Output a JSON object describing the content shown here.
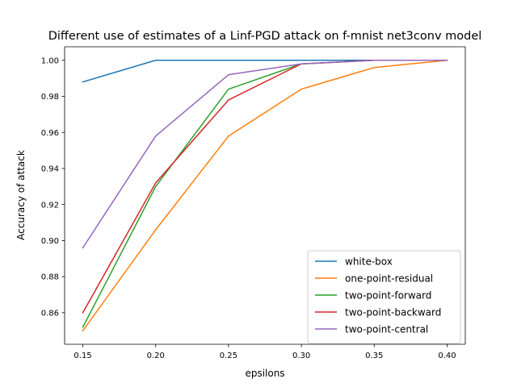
{
  "chart_data": {
    "type": "line",
    "title": "Different use of estimates of a Linf-PGD attack on f-mnist net3conv model",
    "xlabel": "epsilons",
    "ylabel": "Accuracy of attack",
    "x": [
      0.15,
      0.2,
      0.25,
      0.3,
      0.35,
      0.4
    ],
    "xlim": [
      0.1375,
      0.4125
    ],
    "ylim": [
      0.8425,
      1.0075
    ],
    "xticks": [
      {
        "value": 0.15,
        "label": "0.15"
      },
      {
        "value": 0.2,
        "label": "0.20"
      },
      {
        "value": 0.25,
        "label": "0.25"
      },
      {
        "value": 0.3,
        "label": "0.30"
      },
      {
        "value": 0.35,
        "label": "0.35"
      },
      {
        "value": 0.4,
        "label": "0.40"
      }
    ],
    "yticks": [
      {
        "value": 0.86,
        "label": "0.86"
      },
      {
        "value": 0.88,
        "label": "0.88"
      },
      {
        "value": 0.9,
        "label": "0.90"
      },
      {
        "value": 0.92,
        "label": "0.92"
      },
      {
        "value": 0.94,
        "label": "0.94"
      },
      {
        "value": 0.96,
        "label": "0.96"
      },
      {
        "value": 0.98,
        "label": "0.98"
      },
      {
        "value": 1.0,
        "label": "1.00"
      }
    ],
    "grid": false,
    "legend_position": "lower right",
    "series": [
      {
        "name": "white-box",
        "color": "#1f77b4",
        "values": [
          0.988,
          1.0,
          1.0,
          1.0,
          1.0,
          1.0
        ]
      },
      {
        "name": "one-point-residual",
        "color": "#ff7f0e",
        "values": [
          0.85,
          0.906,
          0.958,
          0.984,
          0.996,
          1.0
        ]
      },
      {
        "name": "two-point-forward",
        "color": "#2ca02c",
        "values": [
          0.852,
          0.93,
          0.984,
          0.998,
          1.0,
          1.0
        ]
      },
      {
        "name": "two-point-backward",
        "color": "#d62728",
        "values": [
          0.86,
          0.932,
          0.978,
          0.998,
          1.0,
          1.0
        ]
      },
      {
        "name": "two-point-central",
        "color": "#9467bd",
        "values": [
          0.896,
          0.958,
          0.992,
          0.998,
          1.0,
          1.0
        ]
      }
    ]
  }
}
